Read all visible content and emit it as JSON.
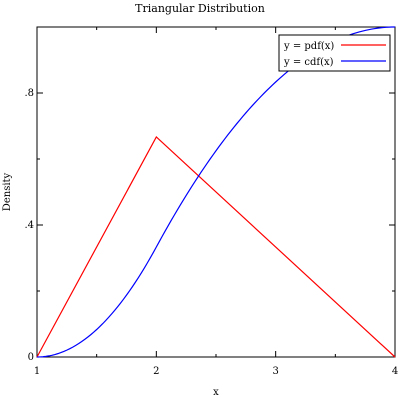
{
  "chart_data": {
    "type": "line",
    "title": "Triangular Distribution",
    "xlabel": "x",
    "ylabel": "Density",
    "xlim": [
      1,
      4
    ],
    "ylim": [
      0,
      1.0
    ],
    "x_ticks": [
      1,
      2,
      3,
      4
    ],
    "x_tick_labels": [
      "1",
      "2",
      "3",
      "4"
    ],
    "y_ticks": [
      0,
      0.4,
      0.8
    ],
    "y_tick_labels": [
      "0",
      ".4",
      ".8"
    ],
    "grid": false,
    "legend_position": "top-right",
    "distribution": {
      "a": 1,
      "c": 2,
      "b": 4
    },
    "series": [
      {
        "name": "y = pdf(x)",
        "color": "#ff0000",
        "x": [
          1,
          2,
          4
        ],
        "y": [
          0,
          0.6667,
          0
        ]
      },
      {
        "name": "y = cdf(x)",
        "color": "#0000ff",
        "x": [
          1,
          1.25,
          1.5,
          1.75,
          2,
          2.25,
          2.5,
          2.75,
          3,
          3.25,
          3.5,
          3.75,
          4
        ],
        "y": [
          0,
          0.0208,
          0.0833,
          0.1875,
          0.3333,
          0.4896,
          0.625,
          0.7396,
          0.8333,
          0.9063,
          0.9583,
          0.9896,
          1.0
        ]
      }
    ]
  }
}
